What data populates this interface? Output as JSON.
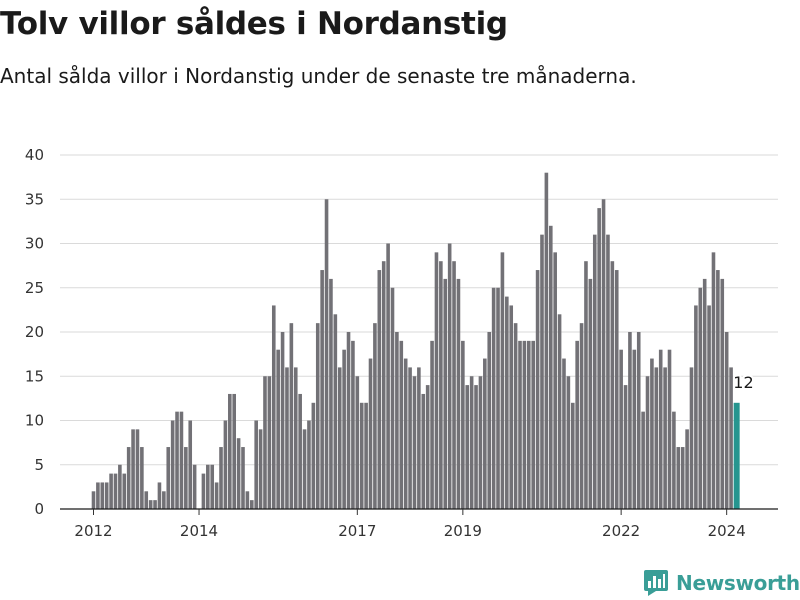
{
  "header": {
    "title": "Tolv villor såldes i Nordanstig",
    "subtitle": "Antal sålda villor i Nordanstig under de senaste tre månaderna."
  },
  "brand": {
    "name": "Newsworthy",
    "color": "#3a9e97",
    "icon": "newsworthy-logo-icon"
  },
  "chart_data": {
    "type": "bar",
    "title": "Tolv villor såldes i Nordanstig",
    "subtitle": "Antal sålda villor i Nordanstig under de senaste tre månaderna.",
    "xlabel": "",
    "ylabel": "",
    "ylim": [
      0,
      40
    ],
    "yticks": [
      0,
      5,
      10,
      15,
      20,
      25,
      30,
      35,
      40
    ],
    "grid": true,
    "x_start": "2012-01",
    "x_end": "2024-03",
    "bar_color": "#727176",
    "highlight_color": "#26958f",
    "xticks": [
      {
        "label": "2012",
        "month": "2012-01"
      },
      {
        "label": "2014",
        "month": "2014-01"
      },
      {
        "label": "2017",
        "month": "2017-01"
      },
      {
        "label": "2019",
        "month": "2019-01"
      },
      {
        "label": "2022",
        "month": "2022-01"
      },
      {
        "label": "2024",
        "month": "2024-01"
      }
    ],
    "annotation": {
      "label": "12",
      "month": "2024-03"
    },
    "values": [
      2,
      3,
      3,
      3,
      4,
      4,
      5,
      4,
      7,
      9,
      9,
      7,
      2,
      1,
      1,
      3,
      2,
      7,
      10,
      11,
      11,
      7,
      10,
      5,
      0,
      4,
      5,
      5,
      3,
      7,
      10,
      13,
      13,
      8,
      7,
      2,
      1,
      10,
      9,
      15,
      15,
      23,
      18,
      20,
      16,
      21,
      16,
      13,
      9,
      10,
      12,
      21,
      27,
      35,
      26,
      22,
      16,
      18,
      20,
      19,
      15,
      12,
      12,
      17,
      21,
      27,
      28,
      30,
      25,
      20,
      19,
      17,
      16,
      15,
      16,
      13,
      14,
      19,
      29,
      28,
      26,
      30,
      28,
      26,
      19,
      14,
      15,
      14,
      15,
      17,
      20,
      25,
      25,
      29,
      24,
      23,
      21,
      19,
      19,
      19,
      19,
      27,
      31,
      38,
      32,
      29,
      22,
      17,
      15,
      12,
      19,
      21,
      28,
      26,
      31,
      34,
      35,
      31,
      28,
      27,
      18,
      14,
      20,
      18,
      20,
      11,
      15,
      17,
      16,
      18,
      16,
      18,
      11,
      7,
      7,
      9,
      16,
      23,
      25,
      26,
      23,
      29,
      27,
      26,
      20,
      16,
      12
    ]
  }
}
